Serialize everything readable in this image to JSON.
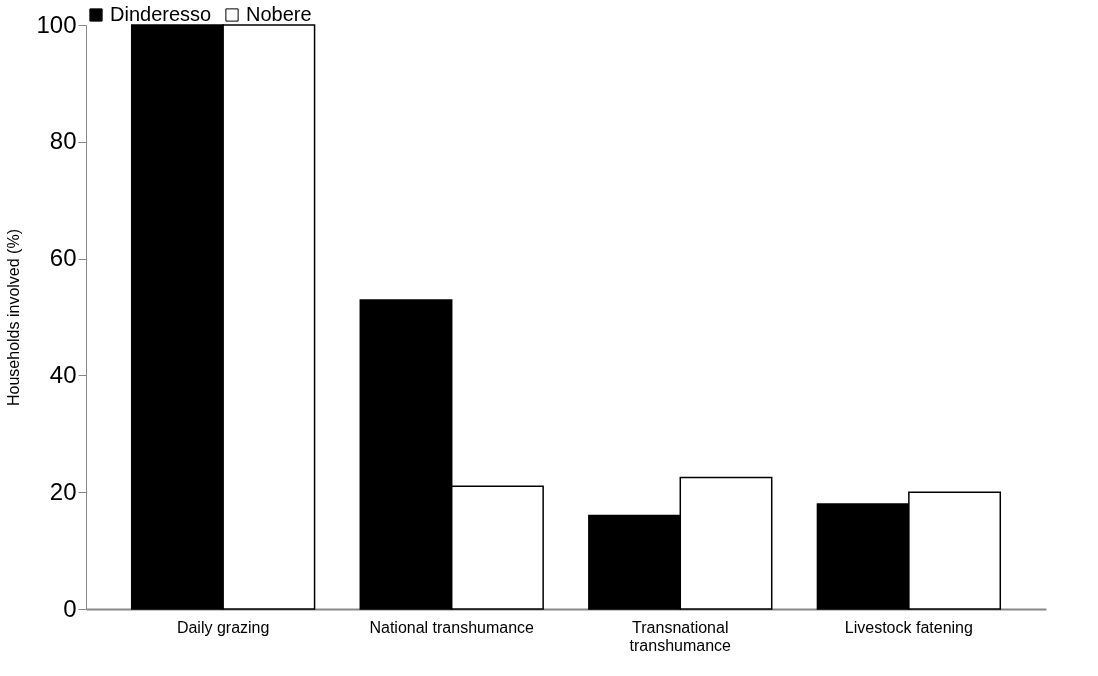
{
  "chart_data": {
    "type": "bar",
    "ylabel": "Households involved (%)",
    "categories": [
      "Daily grazing",
      "National transhumance",
      "Transnational transhumance",
      "Livestock fatening"
    ],
    "series": [
      {
        "name": "Dinderesso",
        "color": "#000000",
        "values": [
          100,
          52.9,
          16,
          18
        ]
      },
      {
        "name": "Nobere",
        "color": "#ffffff",
        "values": [
          100,
          21,
          22.5,
          20
        ]
      }
    ],
    "ylim": [
      0,
      100
    ],
    "yticks": [
      0,
      20,
      40,
      60,
      80,
      100
    ],
    "grid": false,
    "legend": "top"
  }
}
